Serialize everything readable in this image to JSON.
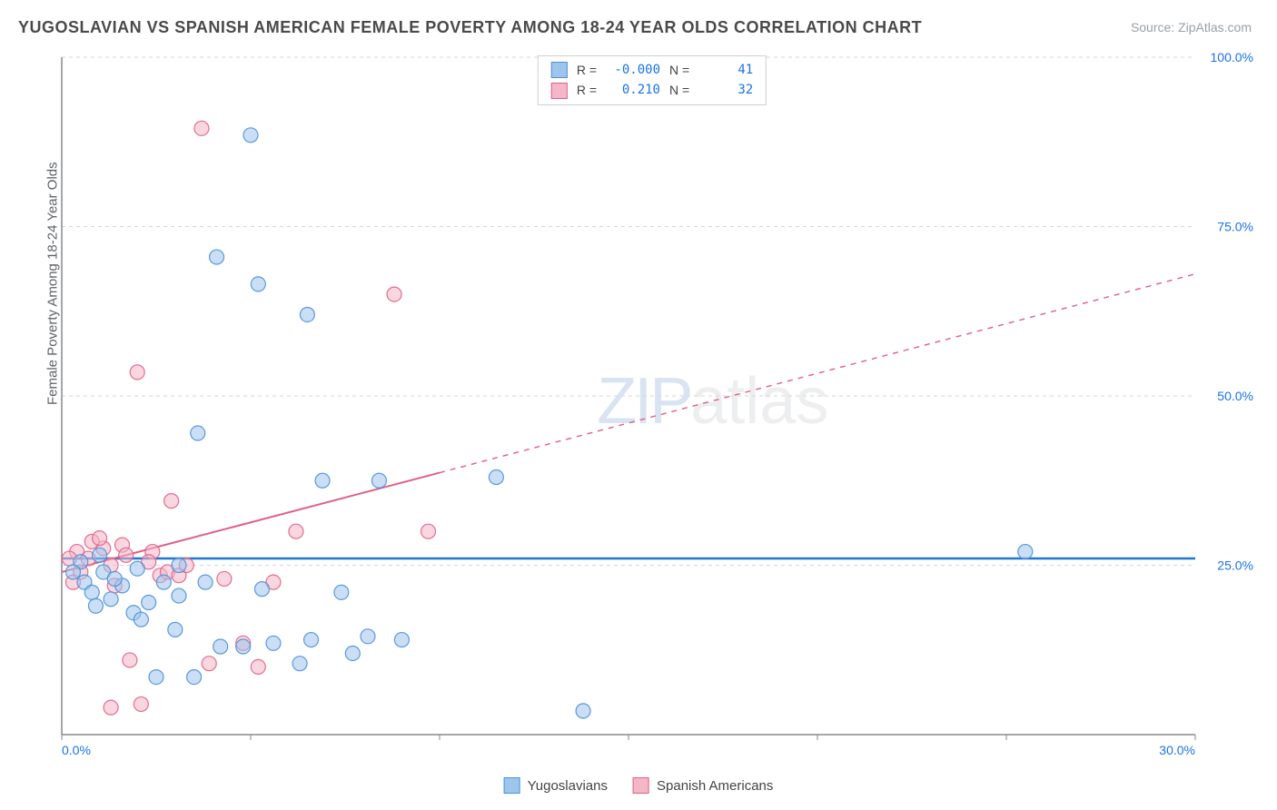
{
  "title": "YUGOSLAVIAN VS SPANISH AMERICAN FEMALE POVERTY AMONG 18-24 YEAR OLDS CORRELATION CHART",
  "source": "Source: ZipAtlas.com",
  "ylabel": "Female Poverty Among 18-24 Year Olds",
  "watermark": {
    "part1": "ZIP",
    "part2": "atlas"
  },
  "chart": {
    "type": "scatter",
    "background_color": "#ffffff",
    "grid_color": "#d6d6d6",
    "grid_dash": "4 4",
    "axis_color": "#8a8a8a",
    "label_fontsize": 15,
    "title_fontsize": 18,
    "tick_fontsize": 14,
    "tick_color": "#1a73e8",
    "marker_radius": 8,
    "marker_opacity": 0.55,
    "marker_stroke_opacity": 0.9,
    "xlim": [
      0,
      30
    ],
    "ylim": [
      0,
      100
    ],
    "xticks": [
      0,
      5,
      10,
      15,
      20,
      25,
      30
    ],
    "xtick_labels": [
      "0.0%",
      "",
      "",
      "",
      "",
      "",
      "30.0%"
    ],
    "yticks": [
      0,
      25,
      50,
      75,
      100
    ],
    "ytick_labels": [
      "",
      "25.0%",
      "50.0%",
      "75.0%",
      "100.0%"
    ],
    "trend_lines": [
      {
        "series": 0,
        "y_at_x0": 26.0,
        "y_at_xmax": 26.0,
        "solid_until_x": 30,
        "width": 2.5
      },
      {
        "series": 1,
        "y_at_x0": 24.0,
        "y_at_xmax": 68.0,
        "solid_until_x": 10,
        "width": 2
      }
    ],
    "series": [
      {
        "name": "Yugoslavians",
        "fill": "#9ec5ec",
        "stroke": "#4a90d9",
        "line_color": "#1f77d4",
        "R": "-0.000",
        "N": "41",
        "points": [
          [
            0.6,
            22.5
          ],
          [
            1.1,
            24.0
          ],
          [
            0.8,
            21.0
          ],
          [
            1.3,
            20.0
          ],
          [
            0.5,
            25.5
          ],
          [
            1.6,
            22.0
          ],
          [
            2.0,
            24.5
          ],
          [
            2.3,
            19.5
          ],
          [
            2.7,
            22.5
          ],
          [
            3.1,
            25.0
          ],
          [
            1.9,
            18.0
          ],
          [
            2.5,
            8.5
          ],
          [
            3.5,
            8.5
          ],
          [
            3.1,
            20.5
          ],
          [
            4.2,
            13.0
          ],
          [
            4.8,
            13.0
          ],
          [
            5.6,
            13.5
          ],
          [
            5.3,
            21.5
          ],
          [
            6.3,
            10.5
          ],
          [
            6.6,
            14.0
          ],
          [
            6.9,
            37.5
          ],
          [
            7.4,
            21.0
          ],
          [
            7.7,
            12.0
          ],
          [
            8.1,
            14.5
          ],
          [
            8.4,
            37.5
          ],
          [
            9.0,
            14.0
          ],
          [
            5.0,
            88.5
          ],
          [
            3.6,
            44.5
          ],
          [
            4.1,
            70.5
          ],
          [
            5.2,
            66.5
          ],
          [
            6.5,
            62.0
          ],
          [
            3.8,
            22.5
          ],
          [
            11.5,
            38.0
          ],
          [
            13.8,
            3.5
          ],
          [
            25.5,
            27.0
          ],
          [
            0.3,
            24.0
          ],
          [
            1.0,
            26.5
          ],
          [
            1.4,
            23.0
          ],
          [
            0.9,
            19.0
          ],
          [
            2.1,
            17.0
          ],
          [
            3.0,
            15.5
          ]
        ]
      },
      {
        "name": "Spanish Americans",
        "fill": "#f5b7c7",
        "stroke": "#e05f86",
        "line_color": "#e05f86",
        "R": "0.210",
        "N": "32",
        "points": [
          [
            0.4,
            27.0
          ],
          [
            0.7,
            26.0
          ],
          [
            1.1,
            27.5
          ],
          [
            1.3,
            25.0
          ],
          [
            1.6,
            28.0
          ],
          [
            0.3,
            22.5
          ],
          [
            0.5,
            24.0
          ],
          [
            0.8,
            28.5
          ],
          [
            1.0,
            29.0
          ],
          [
            1.4,
            22.0
          ],
          [
            1.7,
            26.5
          ],
          [
            2.0,
            53.5
          ],
          [
            2.4,
            27.0
          ],
          [
            2.6,
            23.5
          ],
          [
            2.9,
            34.5
          ],
          [
            2.8,
            24.0
          ],
          [
            2.3,
            25.5
          ],
          [
            3.1,
            23.5
          ],
          [
            3.3,
            25.0
          ],
          [
            3.7,
            89.5
          ],
          [
            3.9,
            10.5
          ],
          [
            4.3,
            23.0
          ],
          [
            4.8,
            13.5
          ],
          [
            5.2,
            10.0
          ],
          [
            5.6,
            22.5
          ],
          [
            6.2,
            30.0
          ],
          [
            1.3,
            4.0
          ],
          [
            2.1,
            4.5
          ],
          [
            1.8,
            11.0
          ],
          [
            8.8,
            65.0
          ],
          [
            9.7,
            30.0
          ],
          [
            0.2,
            26.0
          ]
        ]
      }
    ]
  },
  "legend_top": {
    "r_label": "R =",
    "n_label": "N ="
  },
  "legend_bottom": [
    {
      "series": 0
    },
    {
      "series": 1
    }
  ]
}
